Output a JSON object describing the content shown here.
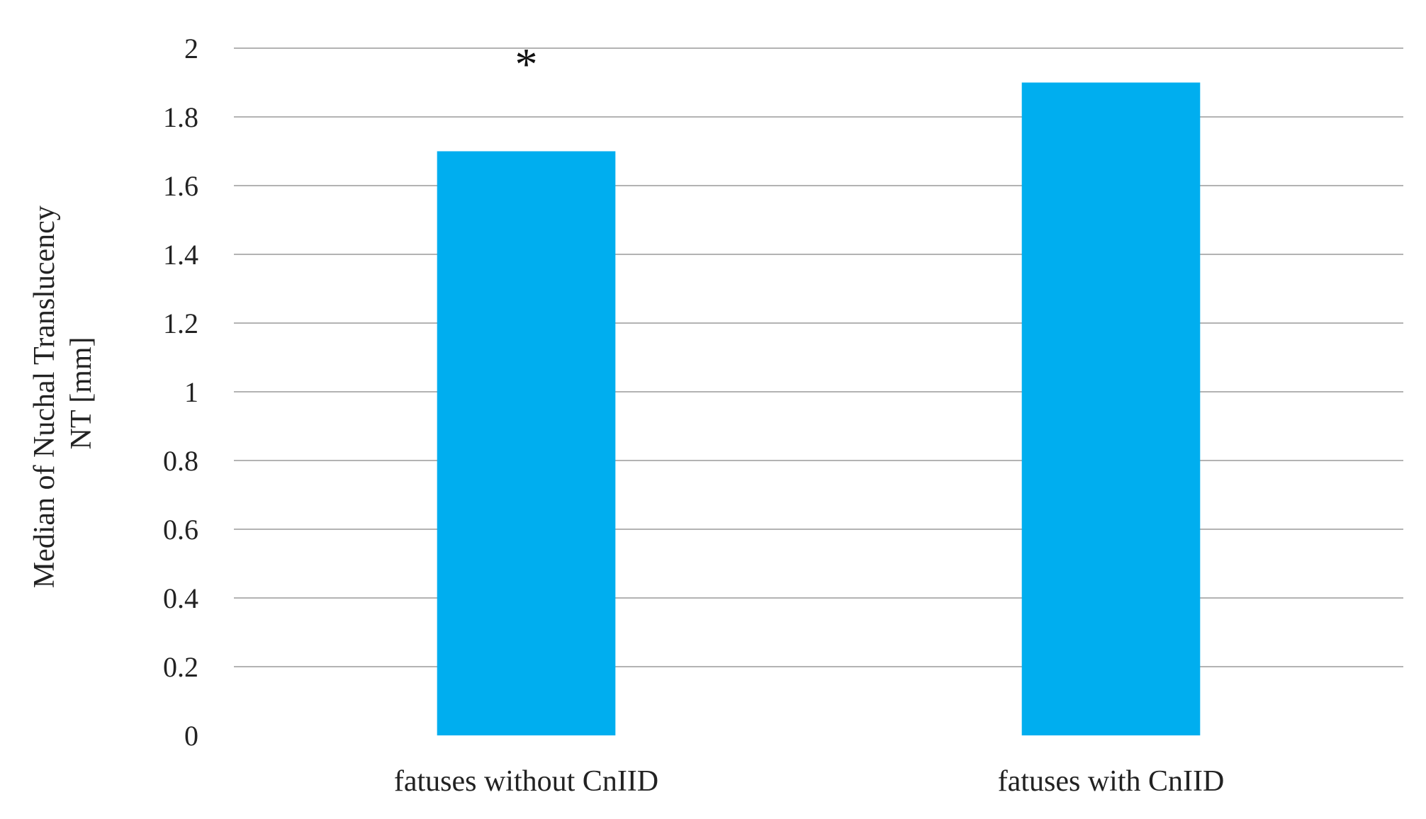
{
  "chart_data": {
    "type": "bar",
    "categories": [
      "fatuses without CnIID",
      "fatuses with CnIID"
    ],
    "values": [
      1.7,
      1.9
    ],
    "title": "",
    "xlabel": "",
    "ylabel_lines": [
      "Median of Nuchal Translucency",
      "NT [mm]"
    ],
    "ylim": [
      0,
      2
    ],
    "yticks": [
      0,
      0.2,
      0.4,
      0.6,
      0.8,
      1,
      1.2,
      1.4,
      1.6,
      1.8,
      2
    ],
    "ytick_labels": [
      "0",
      "0.2",
      "0.4",
      "0.6",
      "0.8",
      "1",
      "1.2",
      "1.4",
      "1.6",
      "1.8",
      "2"
    ],
    "annotations": [
      {
        "category_index": 0,
        "text": "*"
      }
    ],
    "grid": true,
    "legend": "none",
    "bar_color": "#00aeef",
    "grid_color": "#b3b3b3"
  }
}
